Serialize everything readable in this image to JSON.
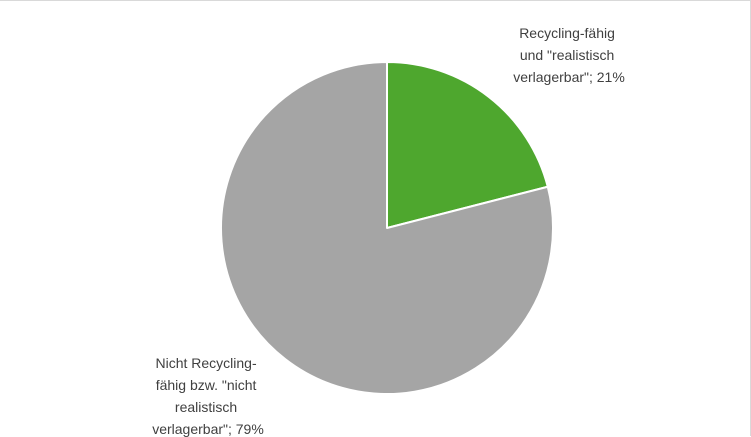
{
  "chart_data": {
    "type": "pie",
    "title": "",
    "start_angle_deg": 0,
    "direction": "clockwise",
    "slices": [
      {
        "name": "Recycling-fähig und \"realistisch verlagerbar\"",
        "value": 21,
        "label_lines": [
          "Recycling-fähig",
          "und \"realistisch",
          "verlagerbar\"; 21%"
        ],
        "color": "#4ea72e"
      },
      {
        "name": "Nicht Recycling-fähig bzw. \"nicht realistisch verlagerbar\"",
        "value": 79,
        "label_lines": [
          "Nicht Recycling-",
          "fähig bzw. \"nicht",
          "realistisch",
          "verlagerbar\"; 79%"
        ],
        "color": "#a5a5a5"
      }
    ],
    "slice_border_color": "#ffffff",
    "legend": "none"
  }
}
